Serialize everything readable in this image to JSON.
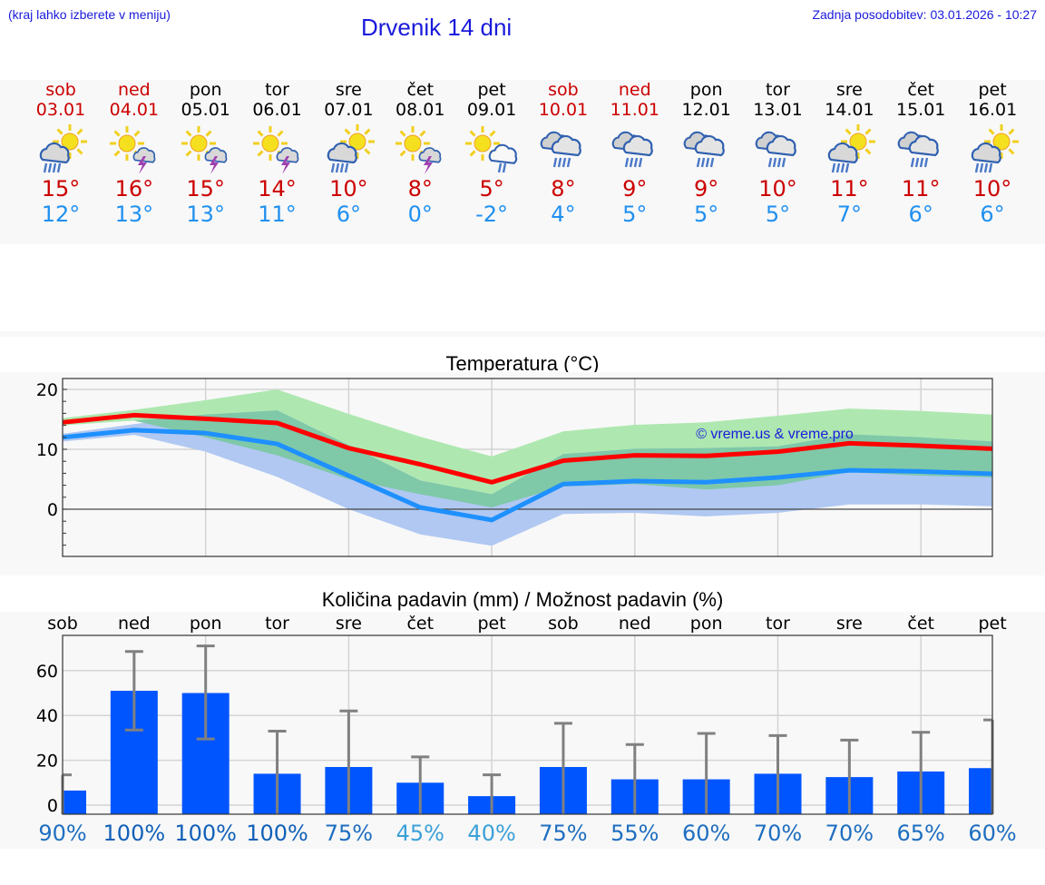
{
  "header": {
    "hint": "(kraj lahko izberete v meniju)",
    "title": "Drvenik 14 dni",
    "updated": "Zadnja posodobitev: 03.01.2026 - 10:27"
  },
  "days": [
    {
      "name": "sob",
      "date": "03.01",
      "weekend": true,
      "icon": "sun-cloud-rain",
      "max": "15°",
      "min": "12°"
    },
    {
      "name": "ned",
      "date": "04.01",
      "weekend": true,
      "icon": "sun-cloud-thunder",
      "max": "16°",
      "min": "13°"
    },
    {
      "name": "pon",
      "date": "05.01",
      "weekend": false,
      "icon": "sun-cloud-thunder",
      "max": "15°",
      "min": "13°"
    },
    {
      "name": "tor",
      "date": "06.01",
      "weekend": false,
      "icon": "sun-cloud-thunder",
      "max": "14°",
      "min": "11°"
    },
    {
      "name": "sre",
      "date": "07.01",
      "weekend": false,
      "icon": "sun-cloud-rain",
      "max": "10°",
      "min": "6°"
    },
    {
      "name": "čet",
      "date": "08.01",
      "weekend": false,
      "icon": "sun-cloud-thunder",
      "max": "8°",
      "min": "0°"
    },
    {
      "name": "pet",
      "date": "09.01",
      "weekend": false,
      "icon": "sun-cloud-light-rain",
      "max": "5°",
      "min": "-2°"
    },
    {
      "name": "sob",
      "date": "10.01",
      "weekend": true,
      "icon": "cloud-rain",
      "max": "8°",
      "min": "4°"
    },
    {
      "name": "ned",
      "date": "11.01",
      "weekend": true,
      "icon": "cloud-rain",
      "max": "9°",
      "min": "5°"
    },
    {
      "name": "pon",
      "date": "12.01",
      "weekend": false,
      "icon": "cloud-rain",
      "max": "9°",
      "min": "5°"
    },
    {
      "name": "tor",
      "date": "13.01",
      "weekend": false,
      "icon": "cloud-rain",
      "max": "10°",
      "min": "5°"
    },
    {
      "name": "sre",
      "date": "14.01",
      "weekend": false,
      "icon": "sun-cloud-rain",
      "max": "11°",
      "min": "7°"
    },
    {
      "name": "čet",
      "date": "15.01",
      "weekend": false,
      "icon": "cloud-rain",
      "max": "11°",
      "min": "6°"
    },
    {
      "name": "pet",
      "date": "16.01",
      "weekend": false,
      "icon": "sun-cloud-rain",
      "max": "10°",
      "min": "6°"
    }
  ],
  "colors": {
    "max_line": "#ff0000",
    "min_line": "#1e90ff",
    "max_band": "#aee8b0",
    "min_band": "#b0c8f2",
    "overlap_band": "#7fc8a8",
    "bar": "#0055ff",
    "errorbar": "#808080",
    "weekend": "#cc0000",
    "min_text": "#2090f0",
    "title_blue": "#1a1adc"
  },
  "chart_data": [
    {
      "type": "line",
      "title": "Temperatura (°C)",
      "xlabel": "",
      "ylabel": "",
      "categories": [
        "03.01",
        "04.01",
        "05.01",
        "06.01",
        "07.01",
        "08.01",
        "09.01",
        "10.01",
        "11.01",
        "12.01",
        "13.01",
        "14.01",
        "15.01",
        "16.01"
      ],
      "ylim": [
        -8,
        22
      ],
      "yticks": [
        0,
        10,
        20
      ],
      "grid": true,
      "watermark": "© vreme.us & vreme.pro",
      "series": [
        {
          "name": "max",
          "values": [
            14.5,
            15.7,
            15.1,
            14.4,
            10.2,
            7.5,
            4.5,
            8.1,
            9.0,
            8.9,
            9.6,
            11.0,
            10.6,
            10.1
          ]
        },
        {
          "name": "min",
          "values": [
            12.0,
            13.2,
            12.7,
            10.9,
            5.6,
            0.3,
            -1.8,
            4.2,
            4.7,
            4.5,
            5.3,
            6.5,
            6.3,
            5.9
          ]
        },
        {
          "name": "max_range_high",
          "values": [
            15.2,
            16.6,
            18.2,
            20.0,
            15.9,
            12.1,
            8.8,
            13.0,
            14.1,
            14.5,
            15.6,
            16.8,
            16.4,
            15.8
          ]
        },
        {
          "name": "max_range_low",
          "values": [
            14.0,
            14.8,
            12.0,
            9.0,
            5.0,
            2.5,
            0.3,
            3.8,
            4.2,
            3.3,
            4.0,
            6.2,
            5.6,
            5.3
          ]
        },
        {
          "name": "min_range_high",
          "values": [
            12.6,
            14.2,
            15.8,
            16.5,
            10.7,
            4.8,
            2.5,
            9.2,
            10.1,
            10.2,
            10.5,
            12.5,
            12.0,
            11.3
          ]
        },
        {
          "name": "min_range_low",
          "values": [
            11.3,
            12.4,
            9.6,
            5.4,
            0.0,
            -4.2,
            -6.1,
            -0.8,
            -0.6,
            -1.2,
            -0.6,
            0.8,
            0.8,
            0.5
          ]
        }
      ]
    },
    {
      "type": "bar",
      "title": "Količina padavin (mm) / Možnost padavin (%)",
      "categories": [
        "sob",
        "ned",
        "pon",
        "tor",
        "sre",
        "čet",
        "pet",
        "sob",
        "ned",
        "pon",
        "tor",
        "sre",
        "čet",
        "pet"
      ],
      "ylim": [
        -4,
        76
      ],
      "yticks": [
        0,
        20,
        40,
        60
      ],
      "grid": true,
      "series": [
        {
          "name": "amount_mm",
          "values": [
            6.5,
            51,
            50,
            14,
            17,
            10,
            4,
            17,
            11.5,
            11.5,
            14,
            12.5,
            15,
            16.5
          ]
        },
        {
          "name": "error_high",
          "values": [
            13.5,
            68.5,
            71,
            33,
            42,
            21.5,
            13.5,
            36.5,
            27,
            32,
            31,
            29,
            32.5,
            38
          ]
        },
        {
          "name": "error_low",
          "values": [
            0,
            33.5,
            29.5,
            0,
            0,
            0,
            0,
            0,
            0,
            0,
            0,
            0,
            0,
            0
          ]
        }
      ],
      "probability": [
        "90%",
        "100%",
        "100%",
        "100%",
        "75%",
        "45%",
        "40%",
        "75%",
        "55%",
        "60%",
        "70%",
        "70%",
        "65%",
        "60%"
      ],
      "probability_colors": [
        "#1e6ec0",
        "#1060b8",
        "#1060b8",
        "#1060b8",
        "#1e6ec0",
        "#3ba0d8",
        "#3ba0d8",
        "#1e6ec0",
        "#1e6ec0",
        "#1e6ec0",
        "#1e6ec0",
        "#1e6ec0",
        "#1e6ec0",
        "#1e6ec0"
      ]
    }
  ]
}
